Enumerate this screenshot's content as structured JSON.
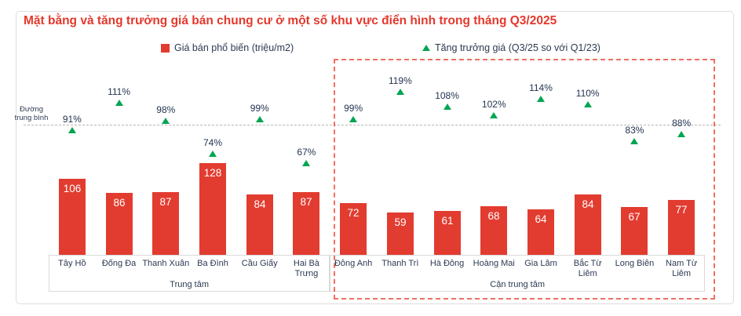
{
  "header": {
    "title": "Mặt bằng và tăng trưởng giá bán chung cư ở một số khu vực điển hình trong tháng Q3/2025"
  },
  "legend": {
    "price": "Giá bán phổ biến (triệu/m2)",
    "growth": "Tăng trưởng giá (Q3/25 so với Q1/23)"
  },
  "average_line": {
    "label": "Đường trung bình"
  },
  "colors": {
    "bar_red": "#e23c30",
    "title_red": "#e4382c",
    "growth_green": "#00a551",
    "navy_text": "#2c3a52",
    "highlight_dash_red": "#ee6f62",
    "avg_line_gray": "#b5b5b5",
    "band_border_gray": "#d9d9d9"
  },
  "chart_data": {
    "type": "bar",
    "title": "Mặt bằng và tăng trưởng giá bán chung cư ở một số khu vực điển hình trong tháng Q3/2025",
    "legend_position": "top",
    "grid": false,
    "series": [
      {
        "name": "Giá bán phổ biến (triệu/m2)",
        "type": "bar",
        "unit": "triệu/m2",
        "color": "#e23c30"
      },
      {
        "name": "Tăng trưởng giá (Q3/25 so với Q1/23)",
        "type": "scatter",
        "marker": "triangle",
        "unit": "%",
        "color": "#00a551"
      }
    ],
    "average_line": {
      "label": "Đường trung bình",
      "style": "dashed"
    },
    "highlighted_group": "Cận trung tâm",
    "groups": [
      {
        "label": "Trung tâm",
        "categories": [
          "Tây Hồ",
          "Đống Đa",
          "Thanh Xuân",
          "Ba Đình",
          "Cầu Giấy",
          "Hai Bà Trưng"
        ],
        "price": [
          106,
          86,
          87,
          128,
          84,
          87
        ],
        "growth_pct": [
          91,
          111,
          98,
          74,
          99,
          67
        ]
      },
      {
        "label": "Cận trung tâm",
        "categories": [
          "Đông Anh",
          "Thanh Trì",
          "Hà Đông",
          "Hoàng Mai",
          "Gia Lâm",
          "Bắc Từ Liêm",
          "Long Biên",
          "Nam Từ Liêm"
        ],
        "price": [
          72,
          59,
          61,
          68,
          64,
          84,
          67,
          77
        ],
        "growth_pct": [
          99,
          119,
          108,
          102,
          114,
          110,
          83,
          88
        ]
      }
    ]
  }
}
